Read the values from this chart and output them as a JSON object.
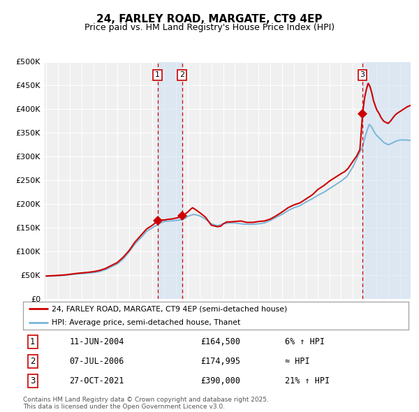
{
  "title": "24, FARLEY ROAD, MARGATE, CT9 4EP",
  "subtitle": "Price paid vs. HM Land Registry's House Price Index (HPI)",
  "legend_line1": "24, FARLEY ROAD, MARGATE, CT9 4EP (semi-detached house)",
  "legend_line2": "HPI: Average price, semi-detached house, Thanet",
  "footnote": "Contains HM Land Registry data © Crown copyright and database right 2025.\nThis data is licensed under the Open Government Licence v3.0.",
  "table": [
    {
      "num": "1",
      "date": "11-JUN-2004",
      "price": "£164,500",
      "relation": "6% ↑ HPI"
    },
    {
      "num": "2",
      "date": "07-JUL-2006",
      "price": "£174,995",
      "relation": "≈ HPI"
    },
    {
      "num": "3",
      "date": "27-OCT-2021",
      "price": "£390,000",
      "relation": "21% ↑ HPI"
    }
  ],
  "sale_dates_num": [
    2004.44,
    2006.51,
    2021.82
  ],
  "sale_prices": [
    164500,
    174995,
    390000
  ],
  "vline_x": [
    2004.44,
    2006.51,
    2021.82
  ],
  "shade_ranges": [
    [
      2004.44,
      2006.51
    ],
    [
      2021.82,
      2025.9
    ]
  ],
  "hpi_color": "#7ab5d8",
  "price_color": "#cc0000",
  "background_color": "#f0f0f0",
  "chart_bg": "#f0f0f0",
  "grid_color": "#ffffff",
  "ylim": [
    0,
    500000
  ],
  "xlim_start": 1994.8,
  "xlim_end": 2025.9
}
